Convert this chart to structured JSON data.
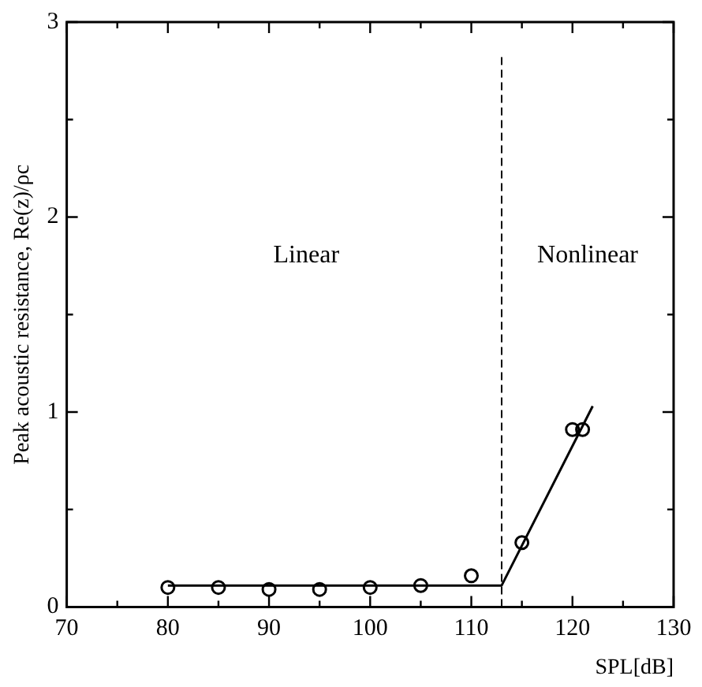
{
  "chart_data": {
    "type": "scatter",
    "xlabel": "SPL[dB]",
    "ylabel": "Peak acoustic resistance, Re(z)/ρc",
    "xlim": [
      70,
      130
    ],
    "xticks": [
      70,
      {
        "value": 75,
        "label": null
      },
      80,
      {
        "value": 85,
        "label": null
      },
      90,
      {
        "value": 95,
        "label": null
      },
      100,
      {
        "value": 105,
        "label": null
      },
      110,
      {
        "value": 115,
        "label": null
      },
      120,
      {
        "value": 125,
        "label": null
      },
      130
    ],
    "ylim": [
      0,
      3
    ],
    "yticks": [
      0,
      {
        "value": 0.5,
        "label": null
      },
      1,
      {
        "value": 1.5,
        "label": null
      },
      2,
      {
        "value": 2.5,
        "label": null
      },
      3
    ],
    "grid": false,
    "legend": false,
    "marker": "circle",
    "series": [
      {
        "type": "scatter",
        "color": "#000000",
        "x": [
          80,
          85,
          90,
          95,
          100,
          105,
          110,
          115,
          120,
          121
        ],
        "values": [
          0.1,
          0.1,
          0.09,
          0.09,
          0.1,
          0.11,
          0.16,
          0.33,
          0.91,
          0.91
        ]
      },
      {
        "type": "line",
        "color": "#000000",
        "marker": "none",
        "line_style": "solid",
        "x": [
          80,
          113,
          122
        ],
        "values": [
          0.11,
          0.11,
          1.03
        ]
      }
    ],
    "ref_lines": [
      {
        "axis": "x",
        "value": 113,
        "color": "#000000",
        "line_style": "dashed"
      }
    ],
    "annotations": [
      "Linear",
      "Nonlinear"
    ]
  }
}
